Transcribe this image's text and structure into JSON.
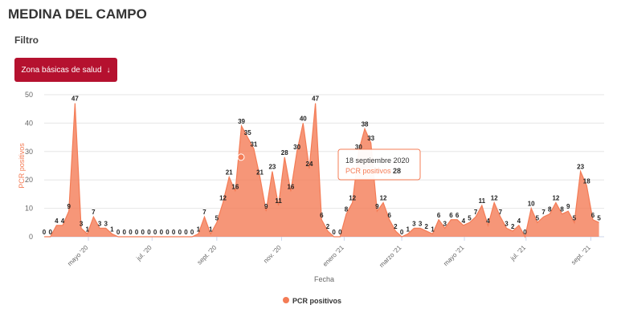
{
  "header": {
    "title": "MEDINA DEL CAMPO",
    "filter_label": "Filtro",
    "filter_button": "Zona básicas de salud"
  },
  "chart_data": {
    "type": "area",
    "x_label": "Fecha",
    "y_label": "PCR positivos",
    "x": [
      0,
      6,
      12,
      18,
      24,
      30,
      36,
      42,
      48,
      54,
      60,
      66,
      72,
      78,
      84,
      90,
      96,
      102,
      108,
      114,
      120,
      126,
      132,
      138,
      144,
      150,
      156,
      162,
      168,
      174,
      180,
      186,
      192,
      198,
      204,
      210,
      216,
      222,
      228,
      234,
      240,
      246,
      252,
      258,
      264,
      270,
      276,
      282,
      288,
      294,
      300,
      306,
      312,
      318,
      324,
      330,
      336,
      342,
      348,
      354,
      360,
      366,
      372,
      378,
      384,
      390,
      396,
      402,
      408,
      414,
      420,
      426,
      432,
      438,
      444,
      450,
      456,
      462,
      468,
      474,
      480,
      486,
      492,
      498,
      504,
      510,
      516,
      522,
      528,
      534,
      540
    ],
    "series": [
      {
        "name": "PCR positivos",
        "color": "#f47c56",
        "values": [
          0,
          0,
          4,
          4,
          9,
          47,
          3,
          1,
          7,
          3,
          3,
          1,
          0,
          0,
          0,
          0,
          0,
          0,
          0,
          0,
          0,
          0,
          0,
          0,
          0,
          1,
          7,
          1,
          5,
          12,
          21,
          16,
          39,
          35,
          31,
          21,
          9,
          23,
          11,
          28,
          16,
          30,
          40,
          24,
          47,
          6,
          2,
          0,
          0,
          8,
          12,
          30,
          38,
          33,
          9,
          12,
          6,
          2,
          0,
          1,
          3,
          3,
          2,
          1,
          6,
          3,
          6,
          6,
          4,
          5,
          7,
          11,
          4,
          12,
          7,
          3,
          2,
          4,
          0,
          10,
          5,
          7,
          8,
          12,
          8,
          9,
          5,
          23,
          18,
          6,
          5
        ]
      }
    ],
    "xlim": [
      0,
      545
    ],
    "xticks": [
      {
        "value": 43,
        "label": "mayo '20"
      },
      {
        "value": 105,
        "label": "jul. '20"
      },
      {
        "value": 168,
        "label": "sept. '20"
      },
      {
        "value": 231,
        "label": "nov. '20"
      },
      {
        "value": 292,
        "label": "enero '21"
      },
      {
        "value": 348,
        "label": "marzo '21"
      },
      {
        "value": 409,
        "label": "mayo '21"
      },
      {
        "value": 469,
        "label": "jul. '21"
      },
      {
        "value": 532,
        "label": "sept. '21"
      }
    ],
    "ylim": [
      0,
      50
    ],
    "yticks": [
      0,
      10,
      20,
      30,
      40,
      50
    ],
    "grid": true,
    "tooltip": {
      "date": "18 septiembre 2020",
      "label": "PCR positivos",
      "value": 28
    }
  }
}
